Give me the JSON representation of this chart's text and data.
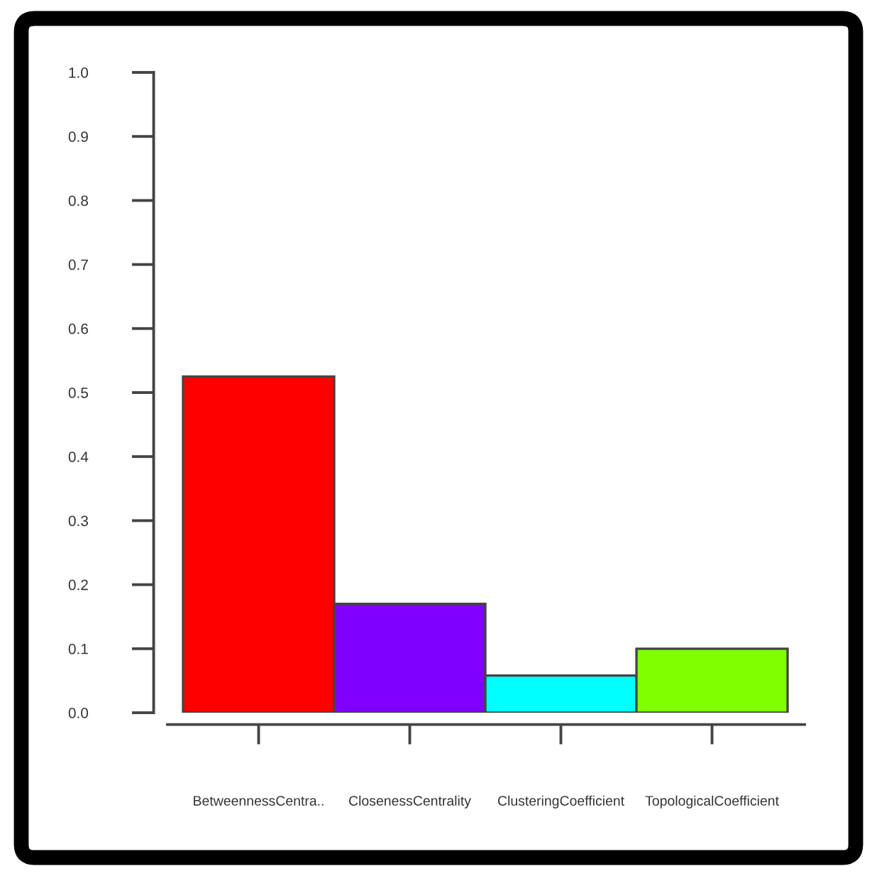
{
  "chart_data": {
    "type": "bar",
    "categories": [
      "BetweennessCentra..",
      "ClosenessCentrality",
      "ClusteringCoefficient",
      "TopologicalCoefficient"
    ],
    "values": [
      0.525,
      0.17,
      0.058,
      0.1
    ],
    "colors": [
      "#ff0000",
      "#8000ff",
      "#00ffff",
      "#80ff00"
    ],
    "ylim": [
      0,
      1
    ],
    "yticks": [
      {
        "value": 0,
        "label": "0.0"
      },
      0.1,
      0.2,
      0.3,
      0.4,
      0.5,
      0.6,
      0.7,
      0.8,
      0.9,
      {
        "value": 1,
        "label": "1.0"
      }
    ],
    "grid": false,
    "legend": false
  }
}
